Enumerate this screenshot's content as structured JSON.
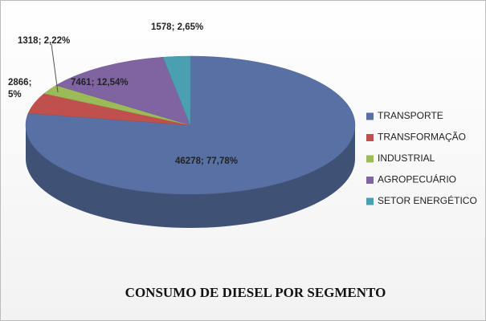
{
  "chart_data": {
    "type": "pie",
    "title": "CONSUMO DE DIESEL POR SEGMENTO",
    "categories": [
      "TRANSPORTE",
      "TRANSFORMAÇÃO",
      "INDUSTRIAL",
      "AGROPECUÁRIO",
      "SETOR ENERGÉTICO"
    ],
    "values": [
      46278,
      2866,
      1318,
      7461,
      1578
    ],
    "value_labels": [
      "46278; 77,78%",
      "2866; 5%",
      "1318; 2,22%",
      "7461; 12,54%",
      "1578; 2,65%"
    ],
    "colors": [
      "#5870a3",
      "#c0504d",
      "#9bbb59",
      "#8064a2",
      "#4aa0b0"
    ],
    "legend": "right"
  }
}
